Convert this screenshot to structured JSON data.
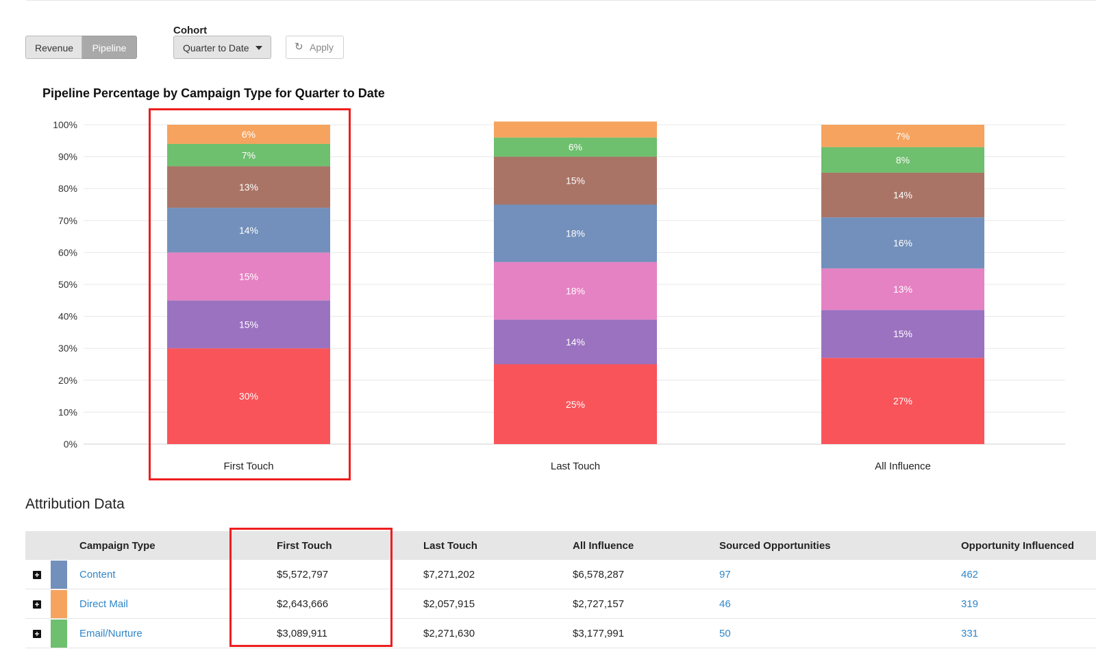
{
  "controls": {
    "view_toggle": [
      "Revenue",
      "Pipeline"
    ],
    "active_view": "Pipeline",
    "cohort_label": "Cohort",
    "cohort_value": "Quarter to Date",
    "apply_label": "Apply"
  },
  "colors": {
    "Display": "#f9545a",
    "Event": "#9b72c0",
    "Partner": "#e582c3",
    "Content": "#7290bb",
    "Webinar": "#a97466",
    "Email/Nurture": "#6ebf6e",
    "Direct Mail": "#f5a35e",
    "highlight": "#ee1d1d",
    "link": "#2f86c9"
  },
  "chart_data": {
    "type": "bar",
    "stacked": true,
    "title": "Pipeline Percentage by Campaign Type for Quarter to Date",
    "xlabel": "",
    "ylabel": "",
    "ylim": [
      0,
      100
    ],
    "y_ticks": [
      "0%",
      "10%",
      "20%",
      "30%",
      "40%",
      "50%",
      "60%",
      "70%",
      "80%",
      "90%",
      "100%"
    ],
    "categories": [
      "First Touch",
      "Last Touch",
      "All Influence"
    ],
    "grid": true,
    "series": [
      {
        "values": [
          30,
          25,
          27
        ],
        "labels": [
          "30%",
          "25%",
          "27%"
        ]
      },
      {
        "values": [
          15,
          14,
          15
        ],
        "labels": [
          "15%",
          "14%",
          "15%"
        ]
      },
      {
        "values": [
          15,
          18,
          13
        ],
        "labels": [
          "15%",
          "18%",
          "13%"
        ]
      },
      {
        "values": [
          14,
          18,
          16
        ],
        "labels": [
          "14%",
          "18%",
          "16%"
        ]
      },
      {
        "values": [
          13,
          15,
          14
        ],
        "labels": [
          "13%",
          "15%",
          "14%"
        ]
      },
      {
        "values": [
          7,
          6,
          8
        ],
        "labels": [
          "7%",
          "6%",
          "8%"
        ]
      },
      {
        "values": [
          6,
          5,
          7
        ],
        "labels": [
          "6%",
          "",
          "7%"
        ]
      }
    ],
    "series_colors": [
      "#f9545a",
      "#9b72c0",
      "#e582c3",
      "#7290bb",
      "#a97466",
      "#6ebf6e",
      "#f5a35e"
    ]
  },
  "table": {
    "section_title": "Attribution Data",
    "headers": [
      "Campaign Type",
      "First Touch",
      "Last Touch",
      "All Influence",
      "Sourced Opportunities",
      "Opportunity Influenced"
    ],
    "rows": [
      {
        "type": "Content",
        "color": "#7290bb",
        "first_touch": "$5,572,797",
        "last_touch": "$7,271,202",
        "all_influence": "$6,578,287",
        "sourced": "97",
        "influenced": "462"
      },
      {
        "type": "Direct Mail",
        "color": "#f5a35e",
        "first_touch": "$2,643,666",
        "last_touch": "$2,057,915",
        "all_influence": "$2,727,157",
        "sourced": "46",
        "influenced": "319"
      },
      {
        "type": "Email/Nurture",
        "color": "#6ebf6e",
        "first_touch": "$3,089,911",
        "last_touch": "$2,271,630",
        "all_influence": "$3,177,991",
        "sourced": "50",
        "influenced": "331"
      }
    ]
  }
}
